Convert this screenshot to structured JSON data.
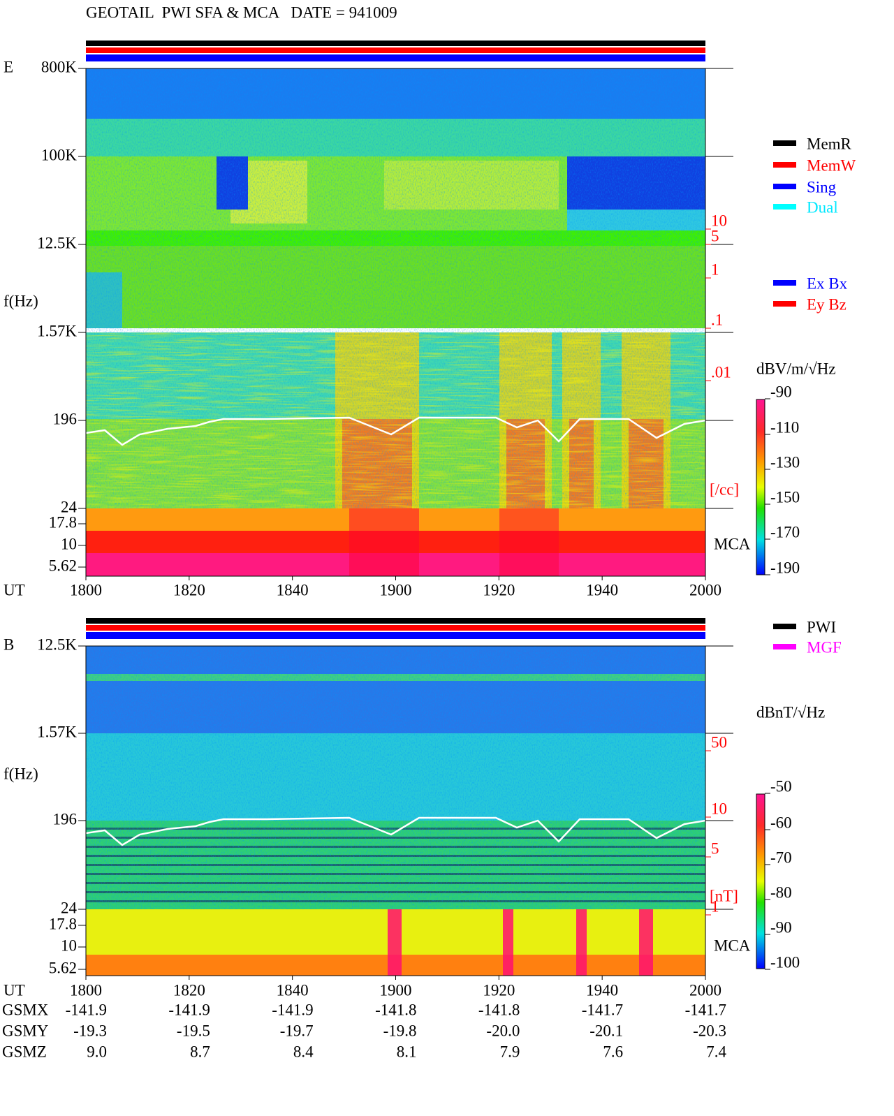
{
  "title": "GEOTAIL  PWI SFA & MCA   DATE = 941009",
  "panels": [
    {
      "label": "E",
      "y_axis_label": "f(Hz)",
      "yticks": [
        "800K",
        "100K",
        "12.5K",
        "1.57K",
        "196",
        "24",
        "17.8",
        "10",
        "5.62"
      ],
      "right_scale": [
        "10",
        "5",
        "1",
        ".1",
        ".01"
      ],
      "right_unit": "[/cc]",
      "mca_label": "MCA",
      "x_axis_label": "UT",
      "xticks": [
        "1800",
        "1820",
        "1840",
        "1900",
        "1920",
        "1940",
        "2000"
      ],
      "legend": [
        "MemR",
        "MemW",
        "Sing",
        "Dual"
      ],
      "legend2": [
        "Ex Bx",
        "Ey Bz"
      ],
      "colorbar_label": "dBV/m/√Hz",
      "colorbar_ticks": [
        "-90",
        "-110",
        "-130",
        "-150",
        "-170",
        "-190"
      ]
    },
    {
      "label": "B",
      "y_axis_label": "f(Hz)",
      "yticks": [
        "12.5K",
        "1.57K",
        "196",
        "24",
        "17.8",
        "10",
        "5.62"
      ],
      "right_scale": [
        "50",
        "10",
        "5",
        "1"
      ],
      "right_unit": "[nT]",
      "mca_label": "MCA",
      "x_axis_label": "UT",
      "xticks": [
        "1800",
        "1820",
        "1840",
        "1900",
        "1920",
        "1940",
        "2000"
      ],
      "legend": [
        "PWI",
        "MGF"
      ],
      "colorbar_label": "dBnT/√Hz",
      "colorbar_ticks": [
        "-50",
        "-60",
        "-70",
        "-80",
        "-90",
        "-100"
      ]
    }
  ],
  "ephemeris": {
    "rows": [
      {
        "label": "GSMX",
        "values": [
          "-141.9",
          "-141.9",
          "-141.9",
          "-141.8",
          "-141.8",
          "-141.7",
          "-141.7"
        ]
      },
      {
        "label": "GSMY",
        "values": [
          "-19.3",
          "-19.5",
          "-19.7",
          "-19.8",
          "-20.0",
          "-20.1",
          "-20.3"
        ]
      },
      {
        "label": "GSMZ",
        "values": [
          "9.0",
          "8.7",
          "8.4",
          "8.1",
          "7.9",
          "7.6",
          "7.4"
        ]
      }
    ]
  }
}
